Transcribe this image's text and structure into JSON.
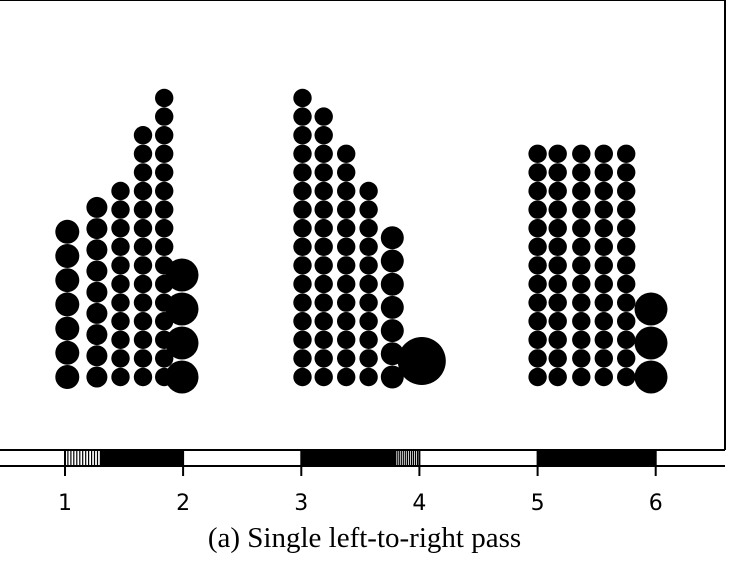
{
  "caption": "(a) Single left-to-right pass",
  "chart_data": {
    "type": "scatter",
    "xlim": [
      0.45,
      6.62
    ],
    "ticks": [
      1,
      2,
      3,
      4,
      5,
      6
    ],
    "tick_labels": [
      "1",
      "2",
      "3",
      "4",
      "5",
      "6"
    ],
    "groups": [
      {
        "start": 1,
        "end": 2,
        "columns": [
          {
            "x": 1.02,
            "count": 7
          },
          {
            "x": 1.27,
            "count": 9
          },
          {
            "x": 1.47,
            "count": 11
          },
          {
            "x": 1.66,
            "count": 14
          },
          {
            "x": 1.84,
            "count": 16
          },
          {
            "x": 1.99,
            "count": 4
          }
        ]
      },
      {
        "start": 3,
        "end": 4,
        "columns": [
          {
            "x": 3.01,
            "count": 16
          },
          {
            "x": 3.19,
            "count": 15
          },
          {
            "x": 3.38,
            "count": 13
          },
          {
            "x": 3.57,
            "count": 11
          },
          {
            "x": 3.77,
            "count": 7
          },
          {
            "x": 4.02,
            "count": 1
          }
        ]
      },
      {
        "start": 5,
        "end": 6,
        "columns": [
          {
            "x": 5.0,
            "count": 13
          },
          {
            "x": 5.17,
            "count": 13
          },
          {
            "x": 5.37,
            "count": 13
          },
          {
            "x": 5.56,
            "count": 13
          },
          {
            "x": 5.75,
            "count": 13
          },
          {
            "x": 5.96,
            "count": 3
          }
        ]
      }
    ],
    "rug": [
      {
        "start": 1.0,
        "end": 2.0,
        "sparse_until": 1.3
      },
      {
        "start": 3.0,
        "end": 4.0,
        "sparse_from": 3.8
      },
      {
        "start": 5.0,
        "end": 6.0
      }
    ],
    "color": "#000000"
  }
}
